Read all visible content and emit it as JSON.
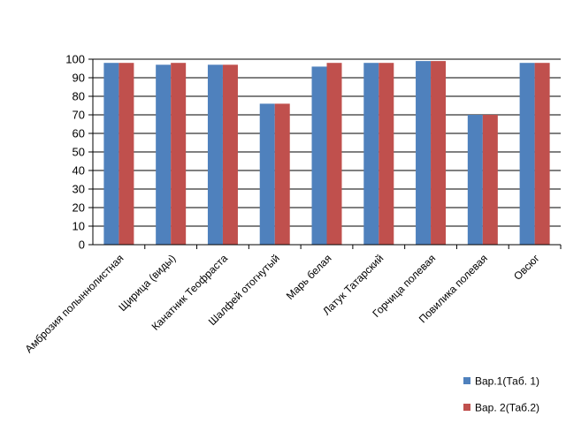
{
  "chart_data": {
    "type": "bar",
    "categories": [
      "Амброзия полыннолистная",
      "Щирица (виды)",
      "Канатник Теофраста",
      "Шалфей отогнутый",
      "Марь белая",
      "Латук Татарский",
      "Горчица полевая",
      "Повилика полевая",
      "Овсюг"
    ],
    "series": [
      {
        "name": "Вар.1(Таб. 1)",
        "color": "#4F81BD",
        "values": [
          98,
          97,
          97,
          76,
          96,
          98,
          99,
          70,
          98
        ]
      },
      {
        "name": "Вар. 2(Таб.2)",
        "color": "#C0504D",
        "values": [
          98,
          98,
          97,
          76,
          98,
          98,
          99,
          70,
          98
        ]
      }
    ],
    "ylim": [
      0,
      100
    ],
    "yticks": [
      0,
      10,
      20,
      30,
      40,
      50,
      60,
      70,
      80,
      90,
      100
    ],
    "grid": true,
    "legend_position": "bottom-right"
  }
}
